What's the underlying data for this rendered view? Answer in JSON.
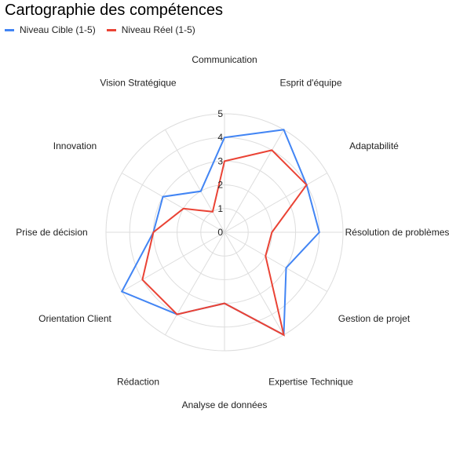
{
  "chart_data": {
    "type": "radar",
    "title": "Cartographie des compétences",
    "categories": [
      "Communication",
      "Esprit d'équipe",
      "Adaptabilité",
      "Résolution de problèmes",
      "Gestion de projet",
      "Expertise Technique",
      "Analyse de données",
      "Rédaction",
      "Orientation Client",
      "Prise de décision",
      "Innovation",
      "Vision Stratégique"
    ],
    "series": [
      {
        "name": "Niveau Cible (1-5)",
        "color": "#4285F4",
        "values": [
          4,
          5,
          4,
          4,
          3,
          5,
          3,
          4,
          5,
          3,
          3,
          2
        ]
      },
      {
        "name": "Niveau Réel (1-5)",
        "color": "#EA4335",
        "values": [
          3,
          4,
          4,
          2,
          2,
          5,
          3,
          4,
          4,
          3,
          2,
          1
        ]
      }
    ],
    "scale_ticks": [
      "0",
      "1",
      "2",
      "3",
      "4",
      "5"
    ],
    "range": [
      0,
      5
    ],
    "grid": true,
    "legend_position": "top-left"
  }
}
